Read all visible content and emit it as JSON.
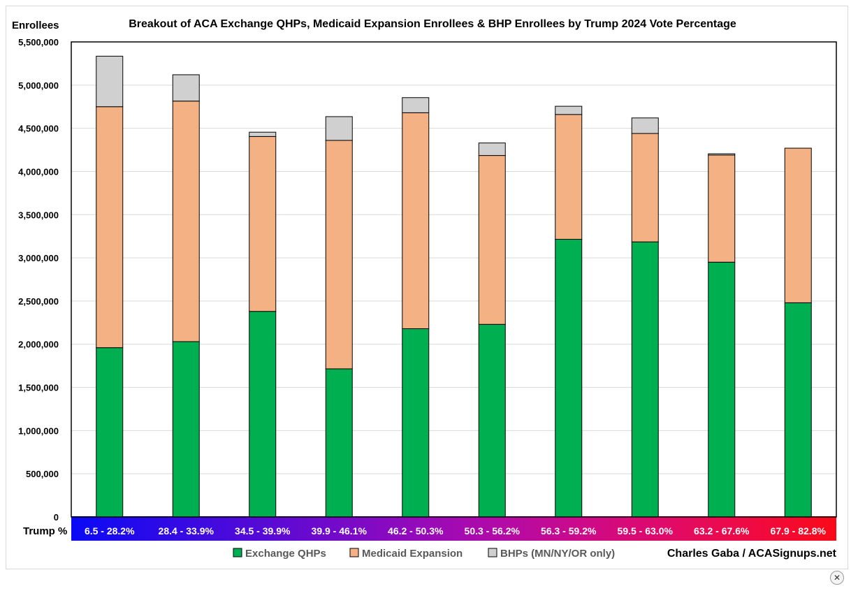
{
  "chart_data": {
    "type": "bar",
    "stacked": true,
    "title": "Breakout of ACA Exchange QHPs, Medicaid Expansion Enrollees & BHP Enrollees by Trump 2024 Vote Percentage",
    "ylabel": "Enrollees",
    "xlabel": "Trump %",
    "ylim": [
      0,
      5500000
    ],
    "ytick_step": 500000,
    "yticks": [
      "0",
      "500,000",
      "1,000,000",
      "1,500,000",
      "2,000,000",
      "2,500,000",
      "3,000,000",
      "3,500,000",
      "4,000,000",
      "4,500,000",
      "5,000,000",
      "5,500,000"
    ],
    "grid": true,
    "legend_position": "bottom",
    "categories": [
      "6.5 - 28.2%",
      "28.4 - 33.9%",
      "34.5 - 39.9%",
      "39.9 - 46.1%",
      "46.2 - 50.3%",
      "50.3 - 56.2%",
      "56.3 - 59.2%",
      "59.5 - 63.0%",
      "63.2 - 67.6%",
      "67.9 - 82.8%"
    ],
    "category_colors": [
      "#0a0af5",
      "#2c0ae8",
      "#4e0ad9",
      "#700acb",
      "#920abc",
      "#b20aa8",
      "#cc0a8a",
      "#e00a68",
      "#ef0a42",
      "#fa0a18"
    ],
    "series": [
      {
        "name": "Exchange QHPs",
        "color": "#00b050",
        "values": [
          1960000,
          2030000,
          2380000,
          1715000,
          2180000,
          2230000,
          3215000,
          3185000,
          2950000,
          2480000
        ]
      },
      {
        "name": "Medicaid Expansion",
        "color": "#f4b183",
        "values": [
          2790000,
          2785000,
          2025000,
          2645000,
          2500000,
          1955000,
          1445000,
          1255000,
          1240000,
          1790000
        ]
      },
      {
        "name": "BHPs (MN/NY/OR only)",
        "color": "#d0d0d0",
        "values": [
          585000,
          305000,
          50000,
          275000,
          175000,
          145000,
          95000,
          180000,
          15000,
          0
        ]
      }
    ],
    "credit": "Charles Gaba / ACASignups.net"
  },
  "close_label": "✕"
}
